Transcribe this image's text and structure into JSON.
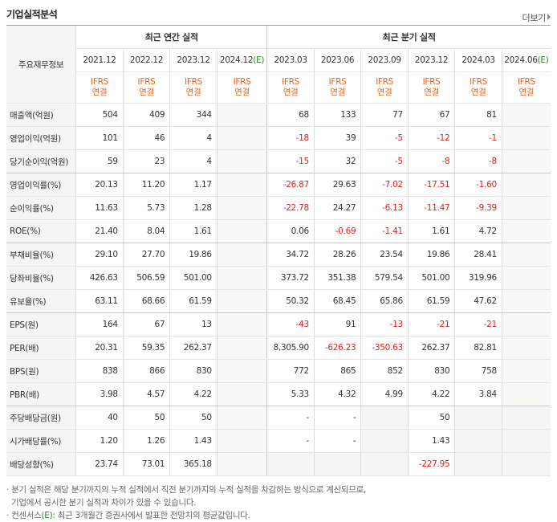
{
  "title": "기업실적분석",
  "more": "더보기",
  "header": {
    "rowLabel": "주요재무정보",
    "annual_group": "최근 연간 실적",
    "quarter_group": "최근 분기 실적",
    "annual_years": [
      "2021.12",
      "2022.12",
      "2023.12",
      "2024.12"
    ],
    "annual_est": "(E)",
    "quarter_years": [
      "2023.03",
      "2023.06",
      "2023.09",
      "2023.12",
      "2024.03",
      "2024.06"
    ],
    "quarter_est": "(E)",
    "ifrs": "IFRS",
    "ifrs_sub": "연결"
  },
  "rows": [
    {
      "label": "매출액(억원)",
      "values": [
        "504",
        "409",
        "344",
        "",
        "68",
        "133",
        "77",
        "67",
        "81",
        ""
      ]
    },
    {
      "label": "영업이익(억원)",
      "values": [
        "101",
        "46",
        "4",
        "",
        "-18",
        "39",
        "-5",
        "-12",
        "-1",
        ""
      ]
    },
    {
      "label": "당기순이익(억원)",
      "values": [
        "59",
        "23",
        "4",
        "",
        "-15",
        "32",
        "-5",
        "-8",
        "-8",
        ""
      ]
    },
    {
      "label": "영업이익률(%)",
      "values": [
        "20.13",
        "11.20",
        "1.17",
        "",
        "-26.87",
        "29.63",
        "-7.02",
        "-17.51",
        "-1.60",
        ""
      ]
    },
    {
      "label": "순이익률(%)",
      "values": [
        "11.63",
        "5.73",
        "1.28",
        "",
        "-22.78",
        "24.27",
        "-6.13",
        "-11.47",
        "-9.39",
        ""
      ]
    },
    {
      "label": "ROE(%)",
      "values": [
        "21.40",
        "8.04",
        "1.61",
        "",
        "0.06",
        "-0.69",
        "-1.41",
        "1.61",
        "4.72",
        ""
      ]
    },
    {
      "label": "부채비율(%)",
      "values": [
        "29.10",
        "27.70",
        "19.86",
        "",
        "34.72",
        "28.26",
        "23.54",
        "19.86",
        "28.41",
        ""
      ]
    },
    {
      "label": "당좌비율(%)",
      "values": [
        "426.63",
        "506.59",
        "501.00",
        "",
        "373.72",
        "351.38",
        "579.54",
        "501.00",
        "319.96",
        ""
      ]
    },
    {
      "label": "유보율(%)",
      "values": [
        "63.11",
        "68.66",
        "61.59",
        "",
        "50.32",
        "68.45",
        "65.86",
        "61.59",
        "47.62",
        ""
      ]
    },
    {
      "label": "EPS(원)",
      "values": [
        "164",
        "67",
        "13",
        "",
        "-43",
        "91",
        "-13",
        "-21",
        "-21",
        ""
      ]
    },
    {
      "label": "PER(배)",
      "values": [
        "20.31",
        "59.35",
        "262.37",
        "",
        "8,305.90",
        "-626.23",
        "-350.63",
        "262.37",
        "82.81",
        ""
      ]
    },
    {
      "label": "BPS(원)",
      "values": [
        "838",
        "866",
        "830",
        "",
        "772",
        "865",
        "852",
        "830",
        "758",
        ""
      ]
    },
    {
      "label": "PBR(배)",
      "values": [
        "3.98",
        "4.57",
        "4.22",
        "",
        "5.33",
        "4.32",
        "4.99",
        "4.22",
        "3.84",
        ""
      ]
    },
    {
      "label": "주당배당금(원)",
      "values": [
        "40",
        "50",
        "50",
        "",
        "-",
        "-",
        "",
        "50",
        "",
        ""
      ]
    },
    {
      "label": "시가배당률(%)",
      "values": [
        "1.20",
        "1.26",
        "1.43",
        "",
        "-",
        "-",
        "",
        "1.43",
        "",
        ""
      ]
    },
    {
      "label": "배당성향(%)",
      "values": [
        "23.74",
        "73.01",
        "365.18",
        "",
        "",
        "",
        "",
        "-227.95",
        "",
        ""
      ]
    }
  ],
  "notes": {
    "line1": "· 분기 실적은 해당 분기까지의 누적 실적에서 직전 분기까지의 누적 실적을 차감하는 방식으로 계산되므로,",
    "line2": "  기업에서 공시한 분기 실적과 차이가 있을 수 있습니다.",
    "line3_pre": "· 컨센서스",
    "line3_e": "(E)",
    "line3_post": ": 최근 3개월간 증권사에서 발표한 전망치의 평균값입니다."
  },
  "colors": {
    "negative": "#e02020",
    "ifrs": "#e8641b",
    "estimate": "#2a8a2a"
  }
}
